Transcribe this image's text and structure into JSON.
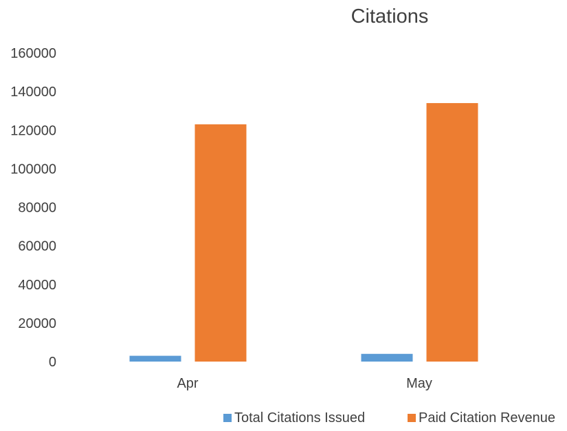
{
  "chart_data": {
    "type": "bar",
    "title": "Citations",
    "categories": [
      "Apr",
      "May"
    ],
    "series": [
      {
        "name": "Total Citations Issued",
        "values": [
          3000,
          4000
        ],
        "color": "#5b9bd5"
      },
      {
        "name": "Paid Citation Revenue",
        "values": [
          123000,
          134000
        ],
        "color": "#ed7d31"
      }
    ],
    "ylim": [
      0,
      160000
    ],
    "yticks": [
      0,
      20000,
      40000,
      60000,
      80000,
      100000,
      120000,
      140000,
      160000
    ],
    "grid": false,
    "legend_position": "bottom-right"
  }
}
